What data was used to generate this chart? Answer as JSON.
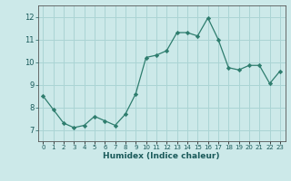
{
  "x": [
    0,
    1,
    2,
    3,
    4,
    5,
    6,
    7,
    8,
    9,
    10,
    11,
    12,
    13,
    14,
    15,
    16,
    17,
    18,
    19,
    20,
    21,
    22,
    23
  ],
  "y": [
    8.5,
    7.9,
    7.3,
    7.1,
    7.2,
    7.6,
    7.4,
    7.2,
    7.7,
    8.6,
    10.2,
    10.3,
    10.5,
    11.3,
    11.3,
    11.15,
    11.95,
    11.0,
    9.75,
    9.65,
    9.85,
    9.85,
    9.05,
    9.6
  ],
  "line_color": "#2e7d6e",
  "marker": "D",
  "marker_size": 2.2,
  "bg_color": "#cce9e9",
  "grid_color": "#aad4d4",
  "xlabel": "Humidex (Indice chaleur)",
  "ylim": [
    6.5,
    12.5
  ],
  "xlim": [
    -0.5,
    23.5
  ],
  "yticks": [
    7,
    8,
    9,
    10,
    11,
    12
  ],
  "xtick_labels": [
    "0",
    "1",
    "2",
    "3",
    "4",
    "5",
    "6",
    "7",
    "8",
    "9",
    "10",
    "11",
    "12",
    "13",
    "14",
    "15",
    "16",
    "17",
    "18",
    "19",
    "20",
    "21",
    "22",
    "23"
  ]
}
